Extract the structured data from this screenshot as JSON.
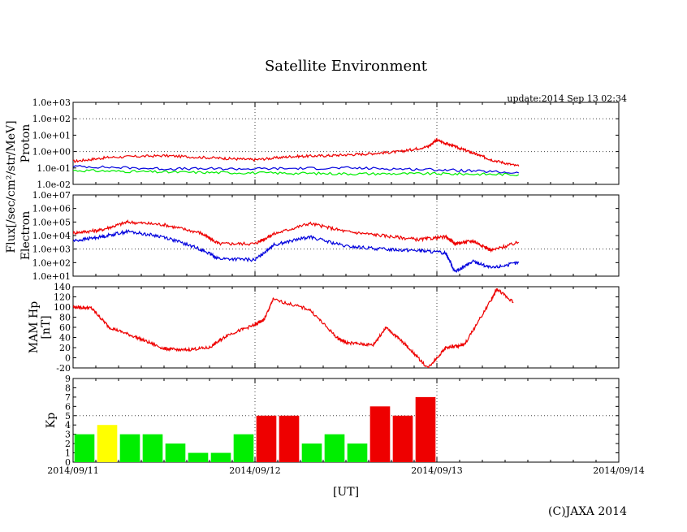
{
  "title": "Satellite Environment",
  "update": "update:2014 Sep 13 02:34",
  "copyright": "(C)JAXA 2014",
  "xlabel": "[UT]",
  "colors": {
    "red": "#ee0000",
    "blue": "#0000dd",
    "green": "#00ee00",
    "yellow": "#ffff00",
    "frame": "#000000"
  },
  "x_ticks": [
    "2014/09/11",
    "2014/09/12",
    "2014/09/13",
    "2014/09/14"
  ],
  "y_label_flux": "Flux[/sec/cm²/str/MeV]",
  "chart_data": [
    {
      "type": "line",
      "name": "proton",
      "ylabel": "Proton",
      "log": true,
      "yticks": [
        "1.0e+03",
        "1.0e+02",
        "1.0e+01",
        "1.0e+00",
        "1.0e-01",
        "1.0e-02"
      ],
      "ylim_exp": [
        -2,
        3
      ],
      "xlim": [
        0,
        3
      ],
      "series": [
        {
          "name": "red",
          "color": "red",
          "x": [
            0,
            0.2,
            0.5,
            0.8,
            1.0,
            1.2,
            1.4,
            1.6,
            1.8,
            1.95,
            2.0,
            2.1,
            2.2,
            2.3,
            2.45
          ],
          "y": [
            -0.6,
            -0.35,
            -0.25,
            -0.4,
            -0.5,
            -0.3,
            -0.25,
            -0.15,
            0.0,
            0.3,
            0.7,
            0.3,
            -0.1,
            -0.5,
            -0.9
          ]
        },
        {
          "name": "blue",
          "color": "blue",
          "x": [
            0,
            0.5,
            1.0,
            1.5,
            2.0,
            2.45
          ],
          "y": [
            -0.9,
            -1.05,
            -1.05,
            -1.0,
            -1.1,
            -1.3
          ]
        },
        {
          "name": "green",
          "color": "green",
          "x": [
            0,
            0.5,
            1.0,
            1.5,
            2.0,
            2.45
          ],
          "y": [
            -1.15,
            -1.25,
            -1.3,
            -1.35,
            -1.35,
            -1.4
          ]
        }
      ]
    },
    {
      "type": "line",
      "name": "electron",
      "ylabel": "Electron",
      "log": true,
      "yticks": [
        "1.0e+07",
        "1.0e+06",
        "1.0e+05",
        "1.0e+04",
        "1.0e+03",
        "1.0e+02",
        "1.0e+01"
      ],
      "ylim_exp": [
        1,
        7
      ],
      "xlim": [
        0,
        3
      ],
      "series": [
        {
          "name": "red",
          "color": "red",
          "x": [
            0,
            0.15,
            0.3,
            0.5,
            0.7,
            0.8,
            1.0,
            1.1,
            1.3,
            1.5,
            1.7,
            1.9,
            2.05,
            2.1,
            2.2,
            2.3,
            2.45
          ],
          "y": [
            4.2,
            4.4,
            5.0,
            4.8,
            4.2,
            3.4,
            3.4,
            4.1,
            4.9,
            4.3,
            4.0,
            3.7,
            3.9,
            3.4,
            3.6,
            2.9,
            3.5
          ]
        },
        {
          "name": "blue",
          "color": "blue",
          "x": [
            0,
            0.15,
            0.3,
            0.5,
            0.7,
            0.8,
            1.0,
            1.1,
            1.3,
            1.5,
            1.7,
            1.9,
            2.05,
            2.1,
            2.2,
            2.3,
            2.45
          ],
          "y": [
            3.6,
            3.9,
            4.3,
            3.9,
            3.0,
            2.3,
            2.2,
            3.3,
            3.9,
            3.2,
            3.0,
            2.9,
            2.7,
            1.3,
            2.1,
            1.6,
            2.0
          ]
        }
      ]
    },
    {
      "type": "line",
      "name": "mam",
      "ylabel": "MAM Hp",
      "ylabel2": "[nT]",
      "yticks": [
        "140",
        "120",
        "100",
        "80",
        "60",
        "40",
        "20",
        "0",
        "-20"
      ],
      "ylim": [
        -20,
        140
      ],
      "xlim": [
        0,
        3
      ],
      "series": [
        {
          "name": "hp",
          "color": "red",
          "x": [
            0,
            0.1,
            0.2,
            0.35,
            0.5,
            0.6,
            0.75,
            0.85,
            1.0,
            1.05,
            1.1,
            1.3,
            1.45,
            1.5,
            1.65,
            1.72,
            1.83,
            1.95,
            2.05,
            2.15,
            2.3,
            2.33,
            2.42
          ],
          "y": [
            100,
            98,
            60,
            40,
            18,
            15,
            20,
            45,
            65,
            75,
            115,
            95,
            40,
            30,
            25,
            60,
            25,
            -20,
            20,
            25,
            115,
            135,
            110
          ]
        }
      ]
    },
    {
      "type": "bar",
      "name": "kp",
      "ylabel": "Kp",
      "yticks": [
        "9",
        "8",
        "7",
        "6",
        "5",
        "4",
        "3",
        "2",
        "1",
        "0"
      ],
      "ylim": [
        0,
        9
      ],
      "xlim": [
        0,
        3
      ],
      "bar_width": 0.11,
      "bars": [
        {
          "x": 0.0625,
          "value": 3,
          "color": "green"
        },
        {
          "x": 0.1875,
          "value": 4,
          "color": "yellow"
        },
        {
          "x": 0.3125,
          "value": 3,
          "color": "green"
        },
        {
          "x": 0.4375,
          "value": 3,
          "color": "green"
        },
        {
          "x": 0.5625,
          "value": 2,
          "color": "green"
        },
        {
          "x": 0.6875,
          "value": 1,
          "color": "green"
        },
        {
          "x": 0.8125,
          "value": 1,
          "color": "green"
        },
        {
          "x": 0.9375,
          "value": 3,
          "color": "green"
        },
        {
          "x": 1.0625,
          "value": 5,
          "color": "red"
        },
        {
          "x": 1.1875,
          "value": 5,
          "color": "red"
        },
        {
          "x": 1.3125,
          "value": 2,
          "color": "green"
        },
        {
          "x": 1.4375,
          "value": 3,
          "color": "green"
        },
        {
          "x": 1.5625,
          "value": 2,
          "color": "green"
        },
        {
          "x": 1.6875,
          "value": 6,
          "color": "red"
        },
        {
          "x": 1.8125,
          "value": 5,
          "color": "red"
        },
        {
          "x": 1.9375,
          "value": 7,
          "color": "red"
        }
      ]
    }
  ]
}
